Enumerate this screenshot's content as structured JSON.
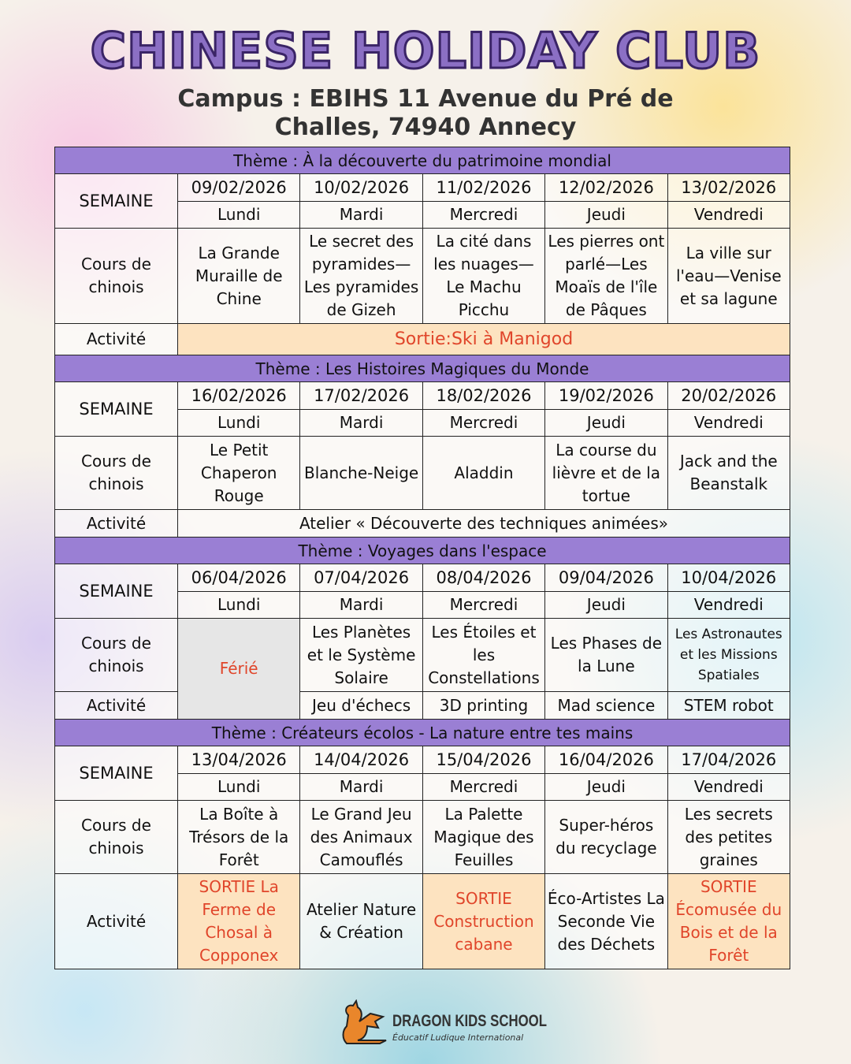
{
  "header": {
    "title": "CHINESE HOLIDAY CLUB",
    "subtitle_line1": "Campus : EBIHS 11 Avenue du Pré de",
    "subtitle_line2": "Challes, 74940 Annecy"
  },
  "labels": {
    "semaine": "SEMAINE",
    "cours": "Cours de chinois",
    "activite": "Activité"
  },
  "weeks": [
    {
      "theme": "Thème : À la découverte du patrimoine mondial",
      "dates": [
        "09/02/2026",
        "10/02/2026",
        "11/02/2026",
        "12/02/2026",
        "13/02/2026"
      ],
      "days": [
        "Lundi",
        "Mardi",
        "Mercredi",
        "Jeudi",
        "Vendredi"
      ],
      "cours": [
        "La Grande Muraille de Chine",
        "Le secret des pyramides—Les pyramides de Gizeh",
        "La cité dans les nuages—Le Machu Picchu",
        "Les pierres ont parlé—Les Moaïs de l'île de Pâques",
        "La ville sur l'eau—Venise et sa lagune"
      ],
      "activite": "Sortie:Ski à Manigod"
    },
    {
      "theme": "Thème :  Les Histoires Magiques du Monde",
      "dates": [
        "16/02/2026",
        "17/02/2026",
        "18/02/2026",
        "19/02/2026",
        "20/02/2026"
      ],
      "days": [
        "Lundi",
        "Mardi",
        "Mercredi",
        "Jeudi",
        "Vendredi"
      ],
      "cours": [
        "Le Petit Chaperon Rouge",
        "Blanche-Neige",
        "Aladdin",
        "La course du lièvre et de la tortue",
        "Jack and the Beanstalk"
      ],
      "activite": "Atelier « Découverte des techniques animées»"
    },
    {
      "theme": "Thème : Voyages dans l'espace",
      "dates": [
        "06/04/2026",
        "07/04/2026",
        "08/04/2026",
        "09/04/2026",
        "10/04/2026"
      ],
      "days": [
        "Lundi",
        "Mardi",
        "Mercredi",
        "Jeudi",
        "Vendredi"
      ],
      "ferie": "Férié",
      "cours": [
        "Les Planètes et le Système Solaire",
        "Les Étoiles et les Constellations",
        "Les Phases de la Lune",
        "Les Astronautes et les Missions Spatiales"
      ],
      "activites": [
        "Jeu d'échecs",
        "3D printing",
        "Mad science",
        "STEM robot"
      ]
    },
    {
      "theme": "Thème : Créateurs écolos - La nature entre tes mains",
      "dates": [
        "13/04/2026",
        "14/04/2026",
        "15/04/2026",
        "16/04/2026",
        "17/04/2026"
      ],
      "days": [
        "Lundi",
        "Mardi",
        "Mercredi",
        "Jeudi",
        "Vendredi"
      ],
      "cours": [
        "La Boîte à Trésors de la Forêt",
        "Le Grand Jeu des Animaux Camouflés",
        "La Palette Magique des Feuilles",
        "Super-héros du recyclage",
        "Les secrets des petites graines"
      ],
      "activites": [
        "SORTIE La Ferme de Chosal à Copponex",
        "Atelier Nature & Création",
        "SORTIE Construction cabane",
        "Éco-Artistes La Seconde Vie des Déchets",
        "SORTIE Écomusée du Bois et de la Forêt"
      ]
    }
  ],
  "footer": {
    "logo_name": "DRAGON KIDS SCHOOL",
    "logo_tagline": "Éducatif Ludique International"
  },
  "colors": {
    "theme_bar": "#9a7fd4",
    "title": "#8b6fc4",
    "sortie_bg": "#fde3c0",
    "sortie_text": "#e0452a"
  }
}
